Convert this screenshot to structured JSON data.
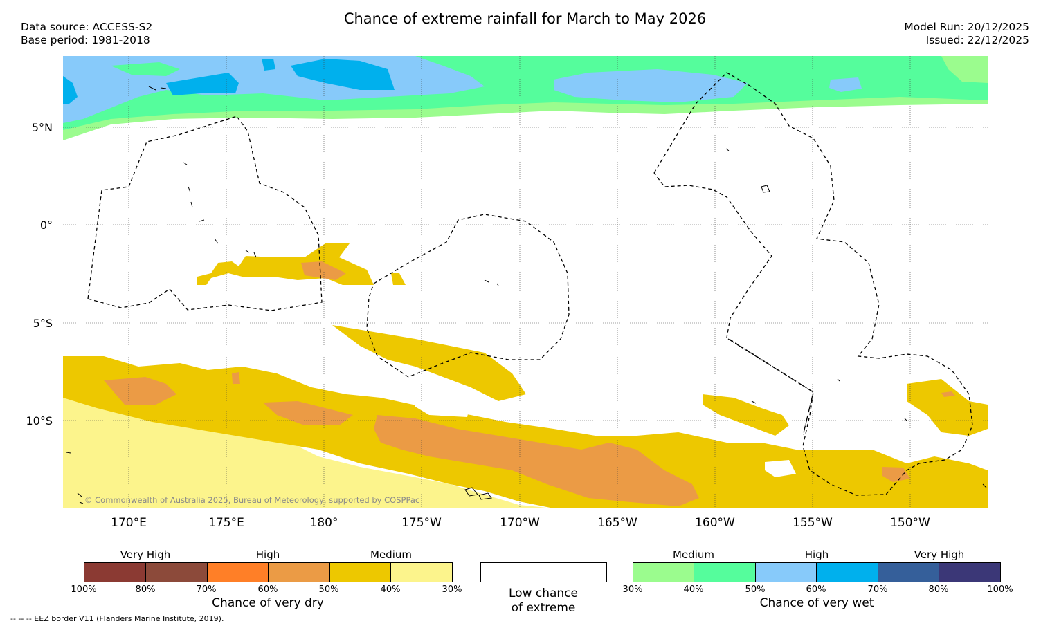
{
  "header": {
    "title": "Chance of extreme rainfall for March to May 2026",
    "data_source": "Data source: ACCESS-S2",
    "base_period": "Base period: 1981-2018",
    "model_run": "Model Run: 20/12/2025",
    "issued": "Issued: 22/12/2025"
  },
  "map": {
    "lat_labels": [
      "5°N",
      "0°",
      "5°S",
      "10°S"
    ],
    "lon_labels": [
      "170°E",
      "175°E",
      "180°",
      "175°W",
      "170°W",
      "165°W",
      "160°W",
      "155°W",
      "150°W"
    ],
    "copyright": "© Commonwealth of Australia 2025, Bureau of Meteorology, supported by COSPPac"
  },
  "legend": {
    "dry": {
      "category_labels": [
        "Very High",
        "High",
        "Medium"
      ],
      "tick_labels": [
        "100%",
        "80%",
        "70%",
        "60%",
        "50%",
        "40%",
        "30%"
      ],
      "colors": [
        "#8b3a33",
        "#8c4a3a",
        "#ff7f27",
        "#eb9b45",
        "#edc800",
        "#fcf48c"
      ],
      "caption": "Chance of very dry"
    },
    "low": {
      "caption_line1": "Low chance",
      "caption_line2": "of extreme"
    },
    "wet": {
      "category_labels": [
        "Medium",
        "High",
        "Very High"
      ],
      "tick_labels": [
        "30%",
        "40%",
        "50%",
        "60%",
        "70%",
        "80%",
        "100%"
      ],
      "colors": [
        "#9bfc8e",
        "#55fd9c",
        "#87cafa",
        "#00b0ed",
        "#355f9a",
        "#3b3777"
      ],
      "caption": "Chance of very wet"
    }
  },
  "footnote": "--  --  -- EEZ border V11 (Flanders Marine Institute, 2019)."
}
